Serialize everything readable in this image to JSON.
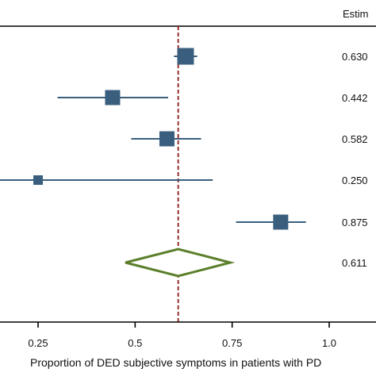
{
  "chart_data": {
    "type": "forest",
    "header": "Estim",
    "xlabel": "Proportion of DED subjective symptoms in patients with PD",
    "xlim": [
      0.06,
      1.15
    ],
    "x_ticks": [
      {
        "value": 0.25,
        "label": "0.25"
      },
      {
        "value": 0.5,
        "label": "0.5"
      },
      {
        "value": 0.75,
        "label": "0.75"
      },
      {
        "value": 1.0,
        "label": "1.0"
      }
    ],
    "reference_line": 0.611,
    "studies": [
      {
        "estimate": 0.63,
        "label": "0.630",
        "ci": [
          0.6,
          0.66
        ],
        "weight": "large"
      },
      {
        "estimate": 0.442,
        "label": "0.442",
        "ci": [
          0.3,
          0.585
        ],
        "weight": "medium"
      },
      {
        "estimate": 0.582,
        "label": "0.582",
        "ci": [
          0.49,
          0.67
        ],
        "weight": "medium"
      },
      {
        "estimate": 0.25,
        "label": "0.250",
        "ci": [
          0.0,
          0.7
        ],
        "weight": "small"
      },
      {
        "estimate": 0.875,
        "label": "0.875",
        "ci": [
          0.76,
          0.94
        ],
        "weight": "medium"
      }
    ],
    "pooled": {
      "estimate": 0.611,
      "label": "0.611",
      "ci": [
        0.475,
        0.745
      ]
    },
    "colors": {
      "study": "#3a5f7e",
      "pooled": "#5b7f2a",
      "reference": "#8b1a1a",
      "axis": "#000000"
    }
  }
}
